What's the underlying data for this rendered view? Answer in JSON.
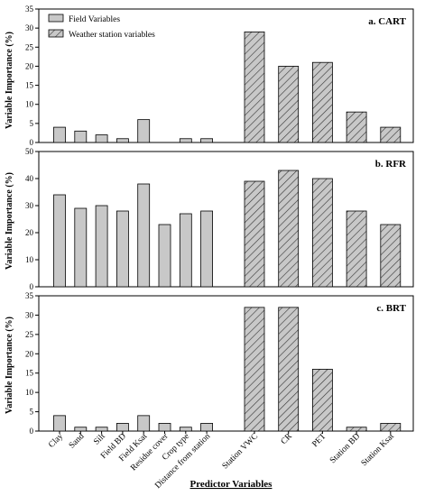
{
  "chart_data": {
    "type": "bar",
    "categories": [
      "Clay",
      "Sand",
      "Silt",
      "Field BD",
      "Field Ksat",
      "Residue cover",
      "Crop type",
      "Distance from station",
      "Station VWC",
      "CR",
      "PET",
      "Station BD",
      "Station Ksat"
    ],
    "field_count": 8,
    "xlabel": "Predictor Variables",
    "ylabel": "Variable Importance (%)",
    "legend": {
      "placement": "top-left",
      "entries": [
        {
          "name": "Field Variables",
          "color": "#c8c8c8",
          "pattern": "solid"
        },
        {
          "name": "Weather station variables",
          "color": "#c8c8c8",
          "pattern": "hatched"
        }
      ]
    },
    "panels": [
      {
        "label": "a. CART",
        "ylim": [
          0,
          35
        ],
        "yticks": [
          0,
          5,
          10,
          15,
          20,
          25,
          30,
          35
        ],
        "values": [
          4,
          3,
          2,
          1,
          6,
          0,
          1,
          1,
          29,
          20,
          21,
          8,
          4
        ]
      },
      {
        "label": "b. RFR",
        "ylim": [
          0,
          50
        ],
        "yticks": [
          0,
          10,
          20,
          30,
          40,
          50
        ],
        "values": [
          34,
          29,
          30,
          28,
          38,
          23,
          27,
          28,
          39,
          43,
          40,
          28,
          23
        ]
      },
      {
        "label": "c. BRT",
        "ylim": [
          0,
          35
        ],
        "yticks": [
          0,
          5,
          10,
          15,
          20,
          25,
          30,
          35
        ],
        "values": [
          4,
          1,
          1,
          2,
          4,
          2,
          1,
          2,
          32,
          32,
          16,
          1,
          2
        ]
      }
    ]
  }
}
